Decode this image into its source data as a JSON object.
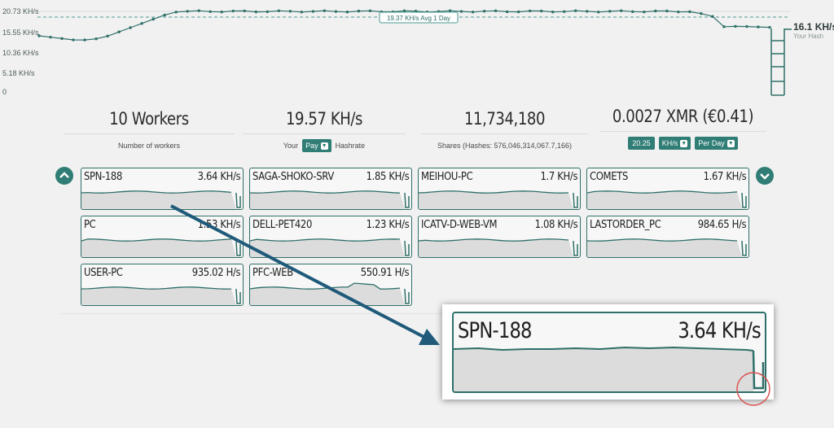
{
  "chart": {
    "y_ticks": [
      "20.73 KH/s",
      "15.55 KH/s",
      "10.36 KH/s",
      "5.18 KH/s",
      "0"
    ],
    "avg_label": "19.37 KH/s Avg 1 Day",
    "your_hash_value": "16.1 KH/s",
    "your_hash_label": "Your Hash"
  },
  "stats": {
    "workers": {
      "value": "10 Workers",
      "label": "Number of workers"
    },
    "hashrate": {
      "value": "19.57 KH/s",
      "prefix": "Your",
      "select": "Pay",
      "suffix": "Hashrate"
    },
    "shares": {
      "value": "11,734,180",
      "label": "Shares (Hashes: 576,046,314,067.7,166)"
    },
    "earnings": {
      "value": "0.0027 XMR (€0.41)",
      "rate": "20.25",
      "unit": "KH/s",
      "period": "Per Day"
    }
  },
  "workers": [
    {
      "name": "SPN-188",
      "rate": "3.64 KH/s"
    },
    {
      "name": "SAGA-SHOKO-SRV",
      "rate": "1.85 KH/s"
    },
    {
      "name": "MEIHOU-PC",
      "rate": "1.7 KH/s"
    },
    {
      "name": "COMETS",
      "rate": "1.67 KH/s"
    },
    {
      "name": "PC",
      "rate": "1.53 KH/s"
    },
    {
      "name": "DELL-PET420",
      "rate": "1.23 KH/s"
    },
    {
      "name": "ICATV-D-WEB-VM",
      "rate": "1.08 KH/s"
    },
    {
      "name": "LASTORDER_PC",
      "rate": "984.65 H/s"
    },
    {
      "name": "USER-PC",
      "rate": "935.02 H/s"
    },
    {
      "name": "PFC-WEB",
      "rate": "550.91 H/s"
    }
  ],
  "zoom": {
    "name": "SPN-188",
    "rate": "3.64 KH/s"
  },
  "colors": {
    "accent": "#2f7d75",
    "card_border": "#2f6f69",
    "arrow": "#1f5a7a",
    "highlight_circle": "#d9534f"
  },
  "icons": {
    "prev": "chevron-up-icon",
    "next": "chevron-down-icon"
  }
}
